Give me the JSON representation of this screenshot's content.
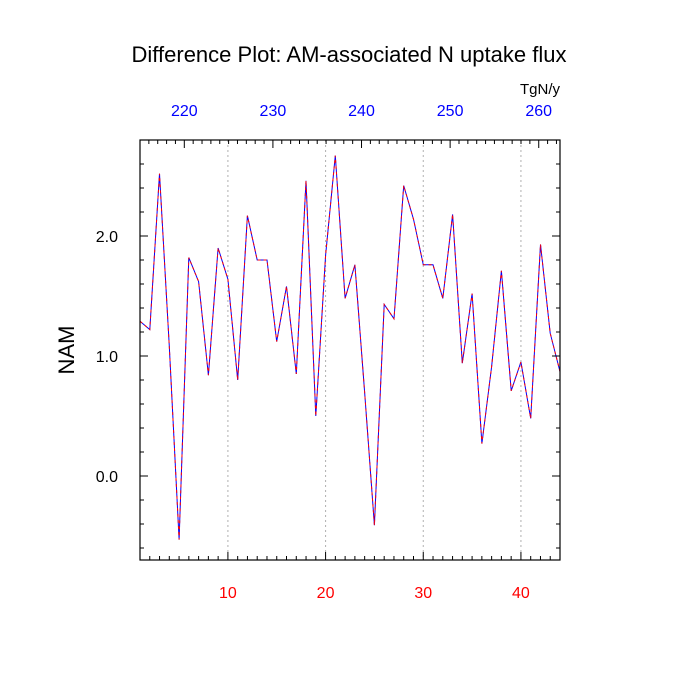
{
  "chart_data": {
    "type": "line",
    "title": "Difference Plot: AM-associated N uptake flux",
    "ylabel": "NAM",
    "top_axis_unit": "TgN/y",
    "xlim": [
      1,
      44
    ],
    "ylim": [
      -0.7,
      2.8
    ],
    "x_ticks": [
      10,
      20,
      30,
      40
    ],
    "y_ticks": [
      0.0,
      1.0,
      2.0
    ],
    "y_tick_labels": [
      "0.0",
      "1.0",
      "2.0"
    ],
    "top_ticks": [
      220,
      230,
      240,
      250,
      260
    ],
    "grid": "vertical-dotted",
    "colors": {
      "bottom_ticks": "#ff0000",
      "top_ticks": "#0000ff",
      "line": "#6600cc",
      "grid": "#b0b0b0"
    },
    "series": [
      {
        "x": [
          1,
          2,
          3,
          4,
          5,
          6,
          7,
          8,
          9,
          10,
          11,
          12,
          13,
          14,
          15,
          16,
          17,
          18,
          19,
          20,
          21,
          22,
          23,
          24,
          25,
          26,
          27,
          28,
          29,
          30,
          31,
          32,
          33,
          34,
          35,
          36,
          37,
          38,
          39,
          40,
          41,
          42,
          43,
          44
        ],
        "values": [
          1.29,
          1.22,
          2.52,
          1.08,
          -0.53,
          1.82,
          1.62,
          0.84,
          1.9,
          1.64,
          0.8,
          2.17,
          1.8,
          1.8,
          1.12,
          1.58,
          0.85,
          2.46,
          0.5,
          1.84,
          2.67,
          1.48,
          1.76,
          0.69,
          -0.41,
          1.43,
          1.31,
          2.42,
          2.14,
          1.76,
          1.76,
          1.48,
          2.18,
          0.94,
          1.52,
          0.27,
          0.91,
          1.71,
          0.71,
          0.95,
          0.48,
          1.93,
          1.19,
          0.87
        ]
      }
    ]
  }
}
